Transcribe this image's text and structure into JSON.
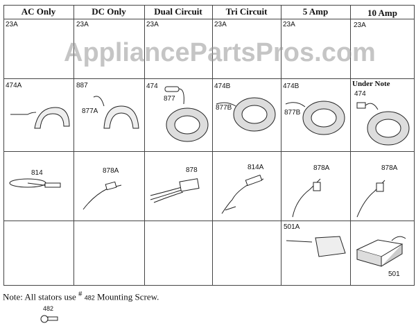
{
  "watermark": "AppliancePartsPros.com",
  "columns": [
    {
      "header": "AC Only",
      "row1": "23A",
      "row2": [
        "474A"
      ],
      "row3": "814",
      "row4": ""
    },
    {
      "header": "DC Only",
      "row1": "23A",
      "row2": [
        "887",
        "877A"
      ],
      "row3": "878A",
      "row4": ""
    },
    {
      "header": "Dual Circuit",
      "row1": "23A",
      "row2": [
        "474",
        "877"
      ],
      "row3": "878",
      "row4": ""
    },
    {
      "header": "Tri Circuit",
      "row1": "23A",
      "row2": [
        "474B",
        "877B"
      ],
      "row3": "814A",
      "row4": ""
    },
    {
      "header": "5 Amp",
      "row1": "23A",
      "row2": [
        "474B",
        "877B"
      ],
      "row3": "878A",
      "row4": "501A"
    },
    {
      "header": "10 Amp",
      "row1": "23A",
      "row2": [
        "Under Note",
        "474"
      ],
      "row3": "878A",
      "row4": "501"
    }
  ],
  "note": {
    "prefix": "Note: All stators use ",
    "hash": "#",
    "part": "482",
    "suffix": " Mounting Screw."
  },
  "screw_label": "482"
}
